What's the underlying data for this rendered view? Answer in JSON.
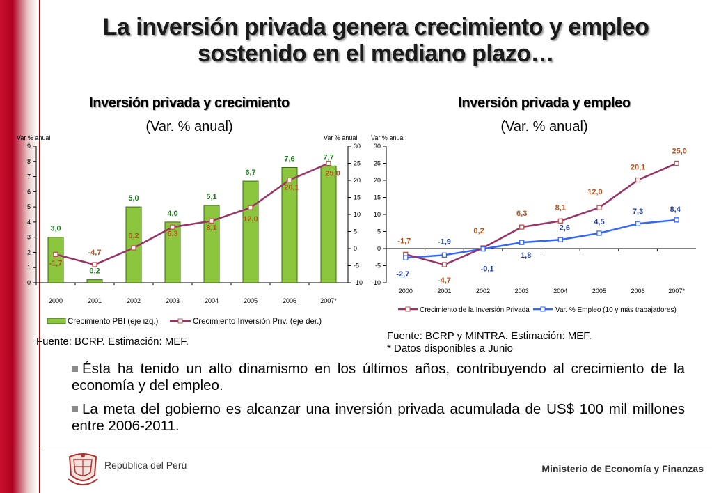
{
  "title": "La inversión privada genera crecimiento y empleo sostenido en el mediano plazo…",
  "chart_left": {
    "heading": "Inversión privada y crecimiento",
    "subheading": "(Var. % anual)",
    "source": "Fuente: BCRP. Estimación: MEF."
  },
  "chart_right": {
    "heading": "Inversión privada y empleo",
    "subheading": "(Var. % anual)",
    "source_line1": "Fuente: BCRP y MINTRA. Estimación: MEF.",
    "source_line2": "* Datos disponibles a Junio"
  },
  "chart_data": [
    {
      "type": "bar",
      "categories": [
        "2000",
        "2001",
        "2002",
        "2003",
        "2004",
        "2005",
        "2006",
        "2007*"
      ],
      "series": [
        {
          "name": "Crecimiento PBI (eje izq.)",
          "type": "bar",
          "axis": "left",
          "values": [
            3.0,
            0.2,
            5.0,
            4.0,
            5.1,
            6.7,
            7.6,
            7.7
          ],
          "labels": [
            "3,0",
            "0,2",
            "5,0",
            "4,0",
            "5,1",
            "6,7",
            "7,6",
            "7,7"
          ],
          "color": "#8cc63f"
        },
        {
          "name": "Crecimiento Inversión Priv. (eje der.)",
          "type": "line",
          "axis": "right",
          "values": [
            -1.7,
            -4.7,
            0.2,
            6.3,
            8.1,
            12.0,
            20.1,
            25.0
          ],
          "labels": [
            "-1,7",
            "-4,7",
            "0,2",
            "6,3",
            "8,1",
            "12,0",
            "20,1",
            "25,0"
          ],
          "color": "#993366"
        }
      ],
      "y_left": {
        "label": "Var % anual",
        "min": 0,
        "max": 9,
        "ticks": [
          "0",
          "1",
          "2",
          "3",
          "4",
          "5",
          "6",
          "7",
          "8",
          "9"
        ]
      },
      "y_right": {
        "label": "Var % anual",
        "min": -10,
        "max": 30,
        "ticks": [
          "-10",
          "-5",
          "0",
          "5",
          "10",
          "15",
          "20",
          "25",
          "30"
        ]
      },
      "legend": "bottom"
    },
    {
      "type": "line",
      "categories": [
        "2000",
        "2001",
        "2002",
        "2003",
        "2004",
        "2005",
        "2006",
        "2007*"
      ],
      "series": [
        {
          "name": "Crecimiento de la Inversión Privada",
          "values": [
            -1.7,
            -4.7,
            0.2,
            6.3,
            8.1,
            12.0,
            20.1,
            25.0
          ],
          "labels": [
            "-1,7",
            "-4,7",
            "0,2",
            "6,3",
            "8,1",
            "12,0",
            "20,1",
            "25,0"
          ],
          "color": "#993366"
        },
        {
          "name": "Var. % Empleo (10 y más trabajadores)",
          "values": [
            -2.7,
            -1.9,
            -0.1,
            1.8,
            2.6,
            4.5,
            7.3,
            8.4
          ],
          "labels": [
            "-2,7",
            "-1,9",
            "-0,1",
            "1,8",
            "2,6",
            "4,5",
            "7,3",
            "8,4"
          ],
          "color": "#3366ff"
        }
      ],
      "y": {
        "label": "Var % anual",
        "min": -10,
        "max": 30,
        "ticks": [
          "-10",
          "-5",
          "0",
          "5",
          "10",
          "15",
          "20",
          "25",
          "30"
        ]
      },
      "legend": "bottom"
    }
  ],
  "bullets": [
    "Ésta ha tenido un alto dinamismo en los últimos años, contribuyendo al crecimiento de la economía y del empleo.",
    "La meta del gobierno es alcanzar una inversión privada acumulada de US$ 100 mil millones entre 2006-2011."
  ],
  "footer": {
    "left": "República del Perú",
    "right": "Ministerio de Economía y Finanzas"
  }
}
